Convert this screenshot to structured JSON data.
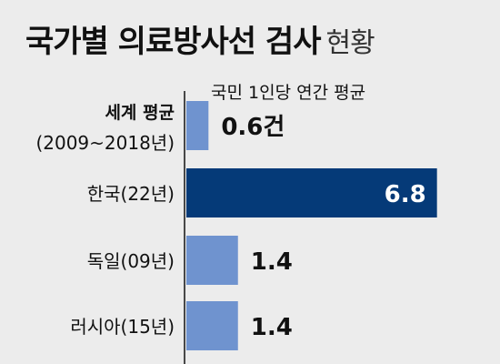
{
  "title": {
    "main": "국가별 의료방사선 검사",
    "suffix": "현황"
  },
  "chart_data": {
    "type": "bar",
    "orientation": "horizontal",
    "subtitle": "국민 1인당 연간 평균",
    "categories": [
      [
        "세계 평균",
        "(2009~2018년)"
      ],
      [
        "한국(22년)"
      ],
      [
        "독일(09년)"
      ],
      [
        "러시아(15년)"
      ]
    ],
    "values": [
      0.6,
      6.8,
      1.4,
      1.4
    ],
    "value_labels": [
      "0.6건",
      "6.8",
      "1.4",
      "1.4"
    ],
    "bar_colors": [
      "#6f93cf",
      "#053a78",
      "#6f93cf",
      "#6f93cf"
    ],
    "value_label_colors": [
      "#111111",
      "#ffffff",
      "#111111",
      "#111111"
    ],
    "xlim": [
      0,
      7.4
    ]
  }
}
